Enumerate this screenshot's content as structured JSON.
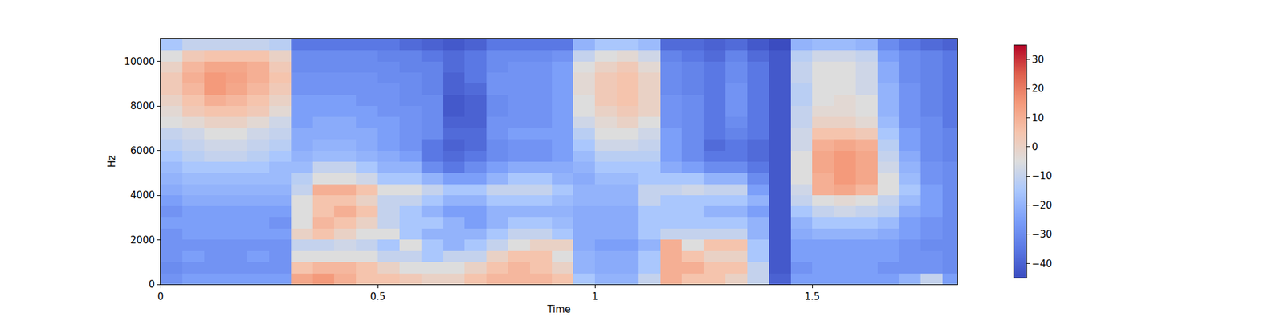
{
  "chart_data": {
    "type": "heatmap",
    "xlabel": "Time",
    "ylabel": "Hz",
    "x": [
      0.025,
      0.075,
      0.125,
      0.175,
      0.225,
      0.275,
      0.325,
      0.375,
      0.425,
      0.475,
      0.525,
      0.575,
      0.625,
      0.675,
      0.725,
      0.775,
      0.825,
      0.875,
      0.925,
      0.975,
      1.025,
      1.075,
      1.125,
      1.175,
      1.225,
      1.275,
      1.325,
      1.375,
      1.425,
      1.475,
      1.525,
      1.575,
      1.625,
      1.675,
      1.725,
      1.775,
      1.825
    ],
    "y": [
      250,
      750,
      1250,
      1750,
      2250,
      2750,
      3250,
      3750,
      4250,
      4750,
      5250,
      5750,
      6250,
      6750,
      7250,
      7750,
      8250,
      8750,
      9250,
      9750,
      10250,
      10750
    ],
    "cells": [
      [
        -28,
        -30,
        -28,
        -28,
        -28,
        -25,
        -28,
        -25,
        -22,
        -20,
        -18,
        -15,
        -12,
        -10,
        -5,
        -3,
        0,
        3,
        3,
        0,
        -5,
        -15
      ],
      [
        -25,
        -28,
        -25,
        -28,
        -25,
        -25,
        -25,
        -22,
        -20,
        -18,
        -15,
        -12,
        -10,
        -8,
        -3,
        3,
        5,
        8,
        10,
        8,
        3,
        -10
      ],
      [
        -25,
        -28,
        -28,
        -28,
        -25,
        -25,
        -25,
        -22,
        -20,
        -18,
        -15,
        -10,
        -8,
        -5,
        0,
        5,
        10,
        15,
        15,
        12,
        5,
        -10
      ],
      [
        -25,
        -28,
        -28,
        -28,
        -25,
        -25,
        -25,
        -22,
        -20,
        -18,
        -15,
        -10,
        -8,
        -5,
        0,
        5,
        8,
        12,
        13,
        12,
        5,
        -10
      ],
      [
        -25,
        -28,
        -25,
        -28,
        -25,
        -25,
        -25,
        -22,
        -20,
        -18,
        -15,
        -12,
        -10,
        -8,
        -3,
        3,
        5,
        8,
        10,
        10,
        5,
        -10
      ],
      [
        -25,
        -28,
        -28,
        -28,
        -25,
        -28,
        -25,
        -22,
        -20,
        -18,
        -18,
        -15,
        -12,
        -10,
        -8,
        -3,
        0,
        3,
        5,
        3,
        0,
        -12
      ],
      [
        12,
        5,
        -5,
        -10,
        0,
        -5,
        -5,
        -5,
        -10,
        -12,
        -18,
        -20,
        -22,
        -22,
        -25,
        -25,
        -25,
        -28,
        -28,
        -30,
        -30,
        -35
      ],
      [
        15,
        8,
        -5,
        -10,
        5,
        8,
        5,
        5,
        10,
        -5,
        -10,
        -18,
        -20,
        -22,
        -22,
        -25,
        -25,
        -28,
        -28,
        -30,
        -30,
        -35
      ],
      [
        10,
        8,
        -5,
        -8,
        0,
        5,
        10,
        5,
        10,
        -5,
        -10,
        -18,
        -20,
        -22,
        -22,
        -25,
        -25,
        -28,
        -28,
        -30,
        -30,
        -35
      ],
      [
        5,
        5,
        -5,
        -10,
        -5,
        0,
        5,
        0,
        5,
        -8,
        -15,
        -20,
        -22,
        -22,
        -25,
        -25,
        -28,
        -28,
        -28,
        -30,
        -30,
        -35
      ],
      [
        5,
        0,
        -10,
        -15,
        -5,
        -10,
        -10,
        -10,
        -5,
        -15,
        -20,
        -22,
        -25,
        -25,
        -25,
        -28,
        -28,
        -28,
        -30,
        -30,
        -32,
        -35
      ],
      [
        3,
        -5,
        -10,
        -5,
        -15,
        -15,
        -15,
        -10,
        -5,
        -15,
        -20,
        -25,
        -28,
        -28,
        -28,
        -28,
        -30,
        -30,
        -30,
        -32,
        -32,
        -38
      ],
      [
        0,
        -5,
        -15,
        -15,
        -20,
        -15,
        -20,
        -15,
        -10,
        -20,
        -30,
        -35,
        -35,
        -30,
        -30,
        -30,
        -30,
        -32,
        -32,
        -32,
        -35,
        -40
      ],
      [
        0,
        -5,
        -10,
        -20,
        -20,
        -20,
        -25,
        -20,
        -15,
        -25,
        -35,
        -38,
        -40,
        -38,
        -40,
        -42,
        -42,
        -40,
        -40,
        -38,
        -38,
        -42
      ],
      [
        5,
        0,
        -10,
        -15,
        -20,
        -25,
        -25,
        -20,
        -15,
        -25,
        -30,
        -35,
        -38,
        -38,
        -40,
        -40,
        -40,
        -38,
        -35,
        -35,
        -35,
        -40
      ],
      [
        8,
        5,
        0,
        -10,
        -15,
        -20,
        -20,
        -15,
        -10,
        -20,
        -25,
        -30,
        -30,
        -28,
        -28,
        -30,
        -30,
        -28,
        -28,
        -30,
        -30,
        -35
      ],
      [
        8,
        8,
        5,
        -5,
        -10,
        -15,
        -20,
        -15,
        -10,
        -15,
        -22,
        -28,
        -28,
        -25,
        -28,
        -28,
        -28,
        -28,
        -28,
        -28,
        -30,
        -35
      ],
      [
        8,
        5,
        5,
        0,
        -10,
        -15,
        -20,
        -15,
        -10,
        -15,
        -22,
        -28,
        -28,
        -25,
        -28,
        -28,
        -28,
        -28,
        -28,
        -28,
        -30,
        -35
      ],
      [
        5,
        0,
        -5,
        0,
        -15,
        -18,
        -20,
        -18,
        -15,
        -20,
        -22,
        -25,
        -25,
        -25,
        -25,
        -25,
        -25,
        -25,
        -25,
        -25,
        -28,
        -35
      ],
      [
        -15,
        -20,
        -20,
        -22,
        -22,
        -22,
        -22,
        -20,
        -20,
        -22,
        -20,
        -18,
        -15,
        -12,
        -8,
        -5,
        -5,
        -3,
        -3,
        -5,
        -10,
        -20
      ],
      [
        -20,
        -22,
        -22,
        -25,
        -22,
        -22,
        -22,
        -20,
        -20,
        -18,
        -15,
        -12,
        -8,
        -5,
        -3,
        0,
        3,
        3,
        3,
        0,
        -5,
        -15
      ],
      [
        -20,
        -22,
        -22,
        -25,
        -22,
        -22,
        -22,
        -20,
        -20,
        -18,
        -15,
        -12,
        -8,
        -5,
        0,
        3,
        5,
        5,
        5,
        3,
        -3,
        -15
      ],
      [
        -10,
        -15,
        -15,
        -20,
        -15,
        -15,
        -15,
        -10,
        -10,
        -15,
        -15,
        -12,
        -10,
        -8,
        -5,
        0,
        0,
        0,
        0,
        -3,
        -8,
        -18
      ],
      [
        10,
        10,
        10,
        10,
        -10,
        -15,
        -15,
        -15,
        -10,
        -15,
        -22,
        -25,
        -25,
        -25,
        -28,
        -28,
        -28,
        -30,
        -30,
        -30,
        -32,
        -38
      ],
      [
        5,
        10,
        5,
        -5,
        -10,
        -15,
        -15,
        -15,
        -8,
        -15,
        -25,
        -30,
        -30,
        -30,
        -30,
        -30,
        -30,
        -32,
        -32,
        -32,
        -35,
        -38
      ],
      [
        5,
        5,
        0,
        5,
        -10,
        -15,
        -20,
        -15,
        -10,
        -20,
        -30,
        -35,
        -38,
        -35,
        -35,
        -35,
        -35,
        -35,
        -35,
        -35,
        -38,
        -40
      ],
      [
        0,
        5,
        0,
        5,
        -10,
        -15,
        -20,
        -15,
        -10,
        -20,
        -30,
        -35,
        -35,
        -32,
        -30,
        -28,
        -28,
        -28,
        -30,
        -30,
        -32,
        -38
      ],
      [
        -10,
        -10,
        -15,
        -15,
        -20,
        -20,
        -25,
        -20,
        -25,
        -30,
        -35,
        -38,
        -38,
        -35,
        -35,
        -35,
        -35,
        -35,
        -35,
        -35,
        -38,
        -42
      ],
      [
        -40,
        -42,
        -42,
        -42,
        -42,
        -42,
        -42,
        -42,
        -42,
        -42,
        -42,
        -42,
        -42,
        -42,
        -42,
        -42,
        -42,
        -42,
        -42,
        -42,
        -42,
        -45
      ],
      [
        -25,
        -28,
        -25,
        -25,
        -22,
        -20,
        -15,
        -10,
        -8,
        -5,
        -5,
        -5,
        -8,
        -8,
        -10,
        -10,
        -12,
        -12,
        -10,
        -10,
        -12,
        -20
      ],
      [
        -25,
        -25,
        -25,
        -25,
        -20,
        -15,
        -10,
        -5,
        10,
        10,
        12,
        12,
        10,
        5,
        0,
        -3,
        -5,
        -5,
        -5,
        -5,
        -8,
        -18
      ],
      [
        -25,
        -25,
        -25,
        -25,
        -20,
        -15,
        -8,
        -3,
        12,
        15,
        15,
        15,
        12,
        5,
        0,
        -3,
        -3,
        -5,
        -5,
        -5,
        -8,
        -18
      ],
      [
        -25,
        -25,
        -25,
        -25,
        -20,
        -15,
        -10,
        -5,
        8,
        12,
        12,
        12,
        10,
        3,
        -3,
        -5,
        -5,
        -8,
        -8,
        -8,
        -10,
        -20
      ],
      [
        -25,
        -28,
        -25,
        -25,
        -22,
        -18,
        -12,
        -10,
        -5,
        -5,
        -8,
        -10,
        -12,
        -15,
        -18,
        -20,
        -20,
        -20,
        -22,
        -22,
        -25,
        -30
      ],
      [
        -20,
        -28,
        -28,
        -28,
        -25,
        -25,
        -22,
        -18,
        -15,
        -18,
        -20,
        -22,
        -25,
        -25,
        -28,
        -28,
        -28,
        -28,
        -30,
        -30,
        -30,
        -35
      ],
      [
        -10,
        -28,
        -28,
        -30,
        -28,
        -28,
        -25,
        -25,
        -25,
        -28,
        -28,
        -30,
        -30,
        -30,
        -30,
        -32,
        -32,
        -32,
        -32,
        -32,
        -32,
        -38
      ],
      [
        -25,
        -30,
        -30,
        -30,
        -30,
        -30,
        -30,
        -30,
        -30,
        -30,
        -30,
        -32,
        -32,
        -32,
        -35,
        -35,
        -35,
        -35,
        -35,
        -35,
        -35,
        -40
      ]
    ],
    "xlim": [
      0,
      1.834
    ],
    "ylim": [
      0,
      11025
    ],
    "xticks": [
      0,
      0.5,
      1,
      1.5
    ],
    "yticks": [
      0,
      2000,
      4000,
      6000,
      8000,
      10000
    ],
    "color_range": [
      -45,
      35
    ],
    "color_ticks": [
      {
        "value": -40,
        "label": "−40"
      },
      {
        "value": -30,
        "label": "−30"
      },
      {
        "value": -20,
        "label": "−20"
      },
      {
        "value": -10,
        "label": "−10"
      },
      0,
      10,
      20,
      30
    ]
  }
}
